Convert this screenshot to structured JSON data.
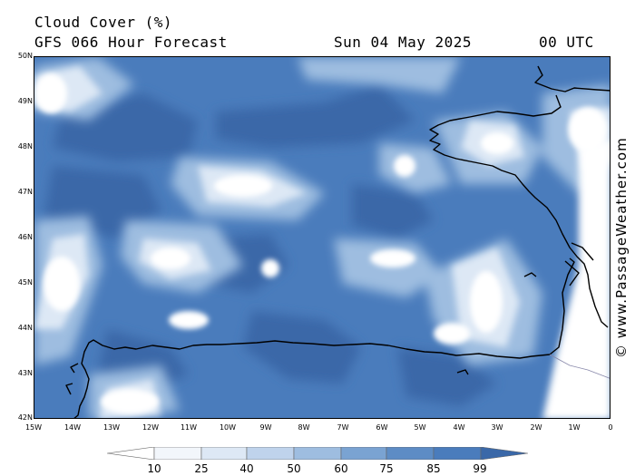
{
  "header": {
    "title": "Cloud Cover (%)",
    "subtitle": "GFS 066 Hour Forecast",
    "date": "Sun 04 May 2025",
    "hour": "00 UTC"
  },
  "map": {
    "lat_labels": [
      "50N",
      "49N",
      "48N",
      "47N",
      "46N",
      "45N",
      "44N",
      "43N",
      "42N"
    ],
    "lon_labels": [
      "15W",
      "14W",
      "13W",
      "12W",
      "11W",
      "10W",
      "9W",
      "8W",
      "7W",
      "6W",
      "5W",
      "4W",
      "3W",
      "2W",
      "1W",
      "0"
    ],
    "lat_range": [
      42,
      50
    ],
    "lon_range": [
      -15,
      0
    ],
    "base_color": "#4a7cbc"
  },
  "watermark": "© www.PassageWeather.com",
  "legend": {
    "labels": [
      "10",
      "25",
      "40",
      "50",
      "60",
      "75",
      "85",
      "99"
    ],
    "colors": [
      "#ffffff",
      "#f2f6fb",
      "#dde8f5",
      "#bfd3ec",
      "#9ebde0",
      "#7aa3d2",
      "#5d8cc5",
      "#4a7cbc",
      "#3a68a8"
    ]
  }
}
